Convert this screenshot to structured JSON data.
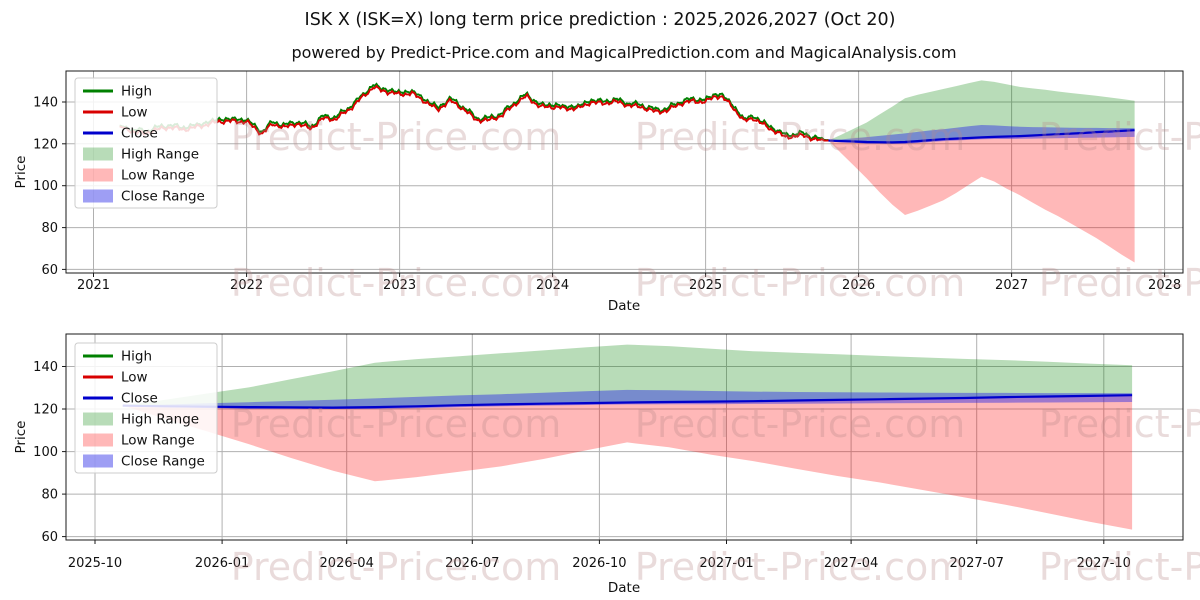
{
  "figure": {
    "title": "ISK X (ISK=X) long term price prediction : 2025,2026,2027 (Oct 20)",
    "subtitle": "powered by Predict-Price.com and MagicalPrediction.com and MagicalAnalysis.com",
    "watermark": "Predict-Price.com",
    "watermark_rows": [
      150,
      296,
      437,
      580
    ],
    "watermark_cols": [
      396,
      800,
      1204
    ],
    "background": "#ffffff"
  },
  "colors": {
    "high_line": "#008000",
    "low_line": "#d80000",
    "close_line": "#0000cc",
    "high_fill": "rgba(0,128,0,0.28)",
    "low_fill": "rgba(255,0,0,0.28)",
    "close_fill": "rgba(40,40,230,0.45)",
    "grid": "#b0b0b0",
    "spine": "#1a1a1a"
  },
  "legend": {
    "items": [
      {
        "label": "High",
        "swatch": "line",
        "color_key": "high_line"
      },
      {
        "label": "Low",
        "swatch": "line",
        "color_key": "low_line"
      },
      {
        "label": "Close",
        "swatch": "line",
        "color_key": "close_line"
      },
      {
        "label": "High Range",
        "swatch": "patch",
        "color_key": "high_fill"
      },
      {
        "label": "Low Range",
        "swatch": "patch",
        "color_key": "low_fill"
      },
      {
        "label": "Close Range",
        "swatch": "patch",
        "color_key": "close_fill"
      }
    ]
  },
  "chart_data": {
    "type": "line+area",
    "title": "ISK X (ISK=X) long term price prediction : 2025,2026,2027 (Oct 20)",
    "history": {
      "note": "historical High/Low price lines (decimal years), High tracks ~1 above Low",
      "x": [
        2021.17,
        2021.25,
        2021.33,
        2021.42,
        2021.5,
        2021.58,
        2021.67,
        2021.75,
        2021.83,
        2021.92,
        2022.0,
        2022.06,
        2022.1,
        2022.17,
        2022.25,
        2022.33,
        2022.42,
        2022.5,
        2022.58,
        2022.67,
        2022.75,
        2022.83,
        2022.88,
        2022.92,
        2023.0,
        2023.08,
        2023.17,
        2023.25,
        2023.33,
        2023.42,
        2023.5,
        2023.58,
        2023.67,
        2023.75,
        2023.83,
        2023.92,
        2024.0,
        2024.08,
        2024.17,
        2024.25,
        2024.33,
        2024.42,
        2024.5,
        2024.58,
        2024.67,
        2024.75,
        2024.83,
        2024.92,
        2025.0,
        2025.06,
        2025.1,
        2025.17,
        2025.25,
        2025.31,
        2025.38,
        2025.46,
        2025.52,
        2025.58,
        2025.65,
        2025.72,
        2025.803
      ],
      "low": [
        128.3,
        126.6,
        125.4,
        126.3,
        127.4,
        127.2,
        128.6,
        129.2,
        130.0,
        130.8,
        131.3,
        127.6,
        124.8,
        128.8,
        127.4,
        130.2,
        127.9,
        131.8,
        131.0,
        136.5,
        142.5,
        147.4,
        145.0,
        144.2,
        143.2,
        144.8,
        140.6,
        135.8,
        140.0,
        136.8,
        132.2,
        131.2,
        132.8,
        138.6,
        143.4,
        138.0,
        137.2,
        136.2,
        137.4,
        140.6,
        139.2,
        139.4,
        138.2,
        138.4,
        135.6,
        135.2,
        138.6,
        141.0,
        140.6,
        142.8,
        142.2,
        137.6,
        130.8,
        133.0,
        129.6,
        125.4,
        122.6,
        123.2,
        124.4,
        122.4,
        121.6
      ]
    },
    "prediction": {
      "note": "monthly points, 20th of each month Oct-2025 through Oct-2027 (decimal years)",
      "x": [
        2025.803,
        2025.886,
        2025.97,
        2026.053,
        2026.136,
        2026.22,
        2026.303,
        2026.386,
        2026.47,
        2026.553,
        2026.637,
        2026.72,
        2026.803,
        2026.886,
        2026.97,
        2027.053,
        2027.136,
        2027.22,
        2027.303,
        2027.386,
        2027.47,
        2027.553,
        2027.637,
        2027.72,
        2027.804
      ],
      "high_range_top": [
        121.6,
        124.3,
        127.3,
        130.2,
        134.0,
        137.8,
        141.8,
        143.5,
        144.8,
        146.2,
        147.6,
        149.0,
        150.3,
        149.6,
        148.4,
        147.2,
        146.5,
        145.8,
        145.0,
        144.3,
        143.6,
        143.0,
        142.2,
        141.4,
        140.6
      ],
      "low_range_bottom": [
        121.6,
        115.5,
        109.5,
        103.5,
        97.0,
        91.0,
        86.0,
        88.0,
        90.5,
        93.0,
        96.5,
        100.5,
        104.3,
        102.0,
        98.5,
        95.5,
        92.0,
        88.5,
        85.5,
        82.0,
        78.5,
        75.0,
        71.0,
        67.0,
        63.3
      ],
      "close": [
        121.6,
        121.3,
        121.1,
        120.9,
        120.8,
        120.7,
        120.9,
        121.3,
        121.8,
        122.2,
        122.5,
        122.8,
        123.1,
        123.3,
        123.5,
        123.7,
        124.0,
        124.3,
        124.6,
        124.9,
        125.2,
        125.6,
        125.9,
        126.2,
        126.5
      ],
      "close_range_top": [
        121.6,
        122.1,
        122.7,
        123.2,
        123.8,
        124.4,
        125.0,
        125.7,
        126.4,
        127.0,
        127.7,
        128.4,
        129.0,
        128.8,
        128.5,
        128.2,
        128.0,
        127.9,
        127.8,
        127.7,
        127.6,
        127.6,
        127.5,
        127.5,
        127.5
      ],
      "close_range_bottom": [
        121.6,
        121.0,
        120.5,
        120.0,
        120.0,
        120.0,
        120.0,
        120.4,
        120.9,
        121.3,
        121.6,
        121.9,
        122.2,
        122.3,
        122.3,
        122.4,
        122.5,
        122.6,
        122.7,
        122.8,
        122.9,
        123.0,
        123.1,
        123.2,
        123.3
      ]
    },
    "charts": [
      {
        "name": "full-history-and-prediction",
        "xlabel": "Date",
        "ylabel": "Price",
        "show_history": true,
        "xlim": [
          2020.82,
          2028.12
        ],
        "ylim": [
          58.3,
          154.8
        ],
        "x_ticks": [
          {
            "v": 2021,
            "label": "2021"
          },
          {
            "v": 2022,
            "label": "2022"
          },
          {
            "v": 2023,
            "label": "2023"
          },
          {
            "v": 2024,
            "label": "2024"
          },
          {
            "v": 2025,
            "label": "2025"
          },
          {
            "v": 2026,
            "label": "2026"
          },
          {
            "v": 2027,
            "label": "2027"
          },
          {
            "v": 2028,
            "label": "2028"
          }
        ],
        "y_ticks": [
          {
            "v": 60,
            "label": "60"
          },
          {
            "v": 80,
            "label": "80"
          },
          {
            "v": 100,
            "label": "100"
          },
          {
            "v": 120,
            "label": "120"
          },
          {
            "v": 140,
            "label": "140"
          }
        ],
        "grid": true,
        "legend_position": "upper-left"
      },
      {
        "name": "prediction-zoom",
        "xlabel": "Date",
        "ylabel": "Price",
        "show_history": false,
        "xlim": [
          2025.6905,
          2027.905
        ],
        "ylim": [
          58.4,
          155.3
        ],
        "x_ticks": [
          {
            "v": 2025.748,
            "label": "2025-10"
          },
          {
            "v": 2026.0,
            "label": "2026-01"
          },
          {
            "v": 2026.247,
            "label": "2026-04"
          },
          {
            "v": 2026.496,
            "label": "2026-07"
          },
          {
            "v": 2026.748,
            "label": "2026-10"
          },
          {
            "v": 2027.0,
            "label": "2027-01"
          },
          {
            "v": 2027.247,
            "label": "2027-04"
          },
          {
            "v": 2027.496,
            "label": "2027-07"
          },
          {
            "v": 2027.748,
            "label": "2027-10"
          }
        ],
        "y_ticks": [
          {
            "v": 60,
            "label": "60"
          },
          {
            "v": 80,
            "label": "80"
          },
          {
            "v": 100,
            "label": "100"
          },
          {
            "v": 120,
            "label": "120"
          },
          {
            "v": 140,
            "label": "140"
          }
        ],
        "grid": true,
        "legend_position": "upper-left"
      }
    ]
  }
}
